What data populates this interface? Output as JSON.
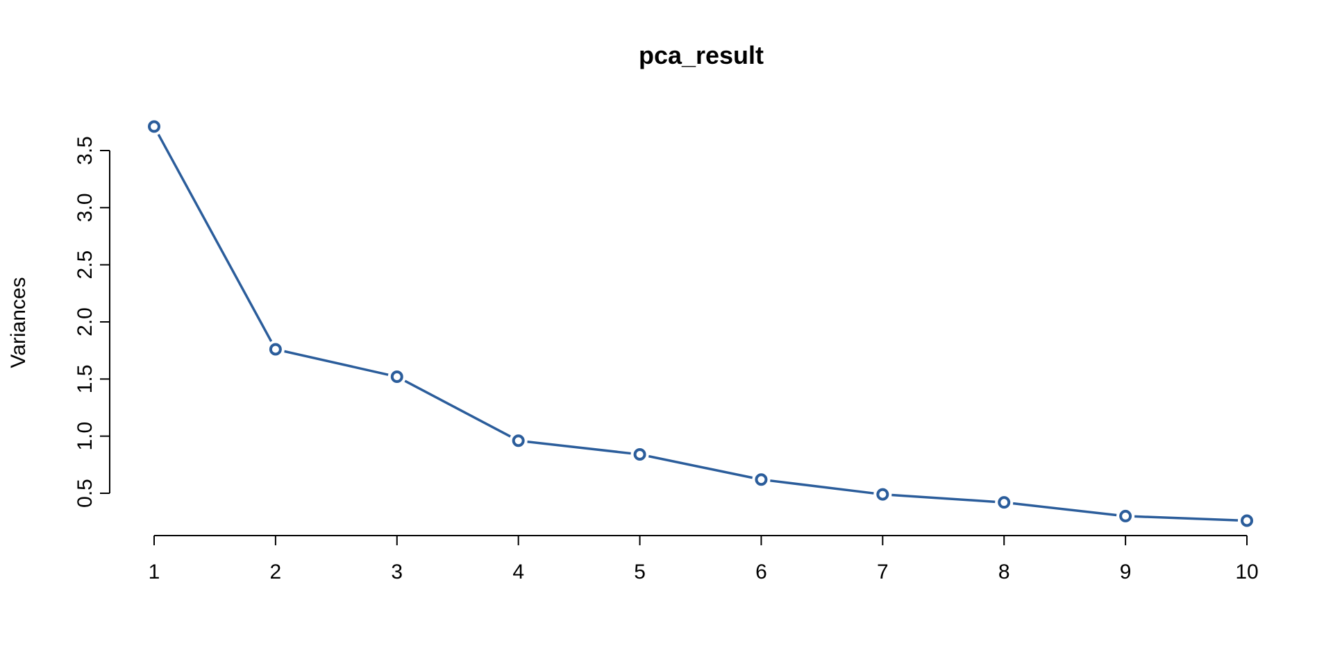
{
  "chart_data": {
    "type": "line",
    "title": "pca_result",
    "xlabel": "",
    "ylabel": "Variances",
    "x": [
      1,
      2,
      3,
      4,
      5,
      6,
      7,
      8,
      9,
      10
    ],
    "x_tick_labels": [
      "1",
      "2",
      "3",
      "4",
      "5",
      "6",
      "7",
      "8",
      "9",
      "10"
    ],
    "series": [
      {
        "values": [
          3.71,
          1.76,
          1.52,
          0.96,
          0.84,
          0.62,
          0.49,
          0.42,
          0.3,
          0.26
        ],
        "color": "#2b5d9b"
      }
    ],
    "y_ticks": [
      0.5,
      1.0,
      1.5,
      2.0,
      2.5,
      3.0,
      3.5
    ],
    "y_tick_labels": [
      "0.5",
      "1.0",
      "1.5",
      "2.0",
      "2.5",
      "3.0",
      "3.5"
    ],
    "xlim": [
      1,
      10
    ],
    "ylim": [
      0.5,
      3.5
    ],
    "grid": false,
    "legend": "none"
  }
}
